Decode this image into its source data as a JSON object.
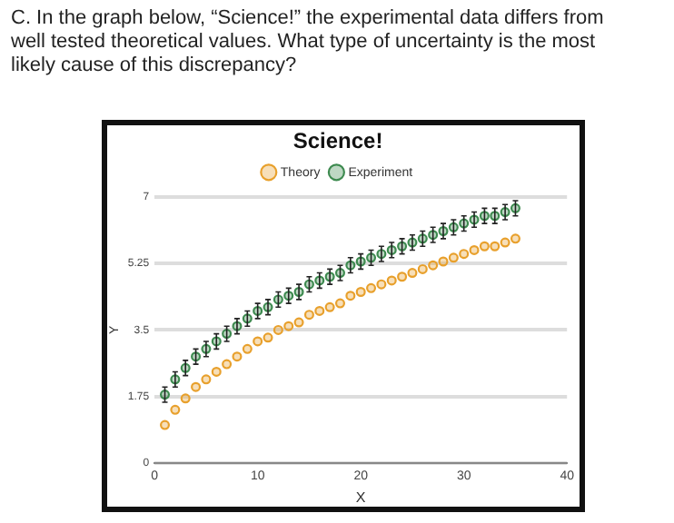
{
  "chart_data": {
    "type": "scatter",
    "title": "C. In the graph below, “Science!” the experimental data differs from well tested theoretical values.  What type of uncertainty is the most likely cause of this discrepancy?",
    "subtitle": "Science!",
    "xlabel": "X",
    "ylabel": "Y",
    "x": [
      1,
      2,
      3,
      4,
      5,
      6,
      7,
      8,
      9,
      10,
      11,
      12,
      13,
      14,
      15,
      16,
      17,
      18,
      19,
      20,
      21,
      22,
      23,
      24,
      25,
      26,
      27,
      28,
      29,
      30,
      31,
      32,
      33,
      34,
      35
    ],
    "series": [
      {
        "name": "Theory",
        "color": "#e8a02c",
        "values": [
          1.0,
          1.4,
          1.7,
          2.0,
          2.2,
          2.4,
          2.6,
          2.8,
          3.0,
          3.2,
          3.3,
          3.5,
          3.6,
          3.7,
          3.9,
          4.0,
          4.1,
          4.2,
          4.4,
          4.5,
          4.6,
          4.7,
          4.8,
          4.9,
          5.0,
          5.1,
          5.2,
          5.3,
          5.4,
          5.5,
          5.6,
          5.7,
          5.7,
          5.8,
          5.9
        ]
      },
      {
        "name": "Experiment",
        "color": "#3d8a4f",
        "values": [
          1.8,
          2.2,
          2.5,
          2.8,
          3.0,
          3.2,
          3.4,
          3.6,
          3.8,
          4.0,
          4.1,
          4.3,
          4.4,
          4.5,
          4.7,
          4.8,
          4.9,
          5.0,
          5.2,
          5.3,
          5.4,
          5.5,
          5.6,
          5.7,
          5.8,
          5.9,
          6.0,
          6.1,
          6.2,
          6.3,
          6.4,
          6.5,
          6.5,
          6.6,
          6.7
        ],
        "errors": [
          0.2,
          0.2,
          0.2,
          0.2,
          0.2,
          0.2,
          0.2,
          0.2,
          0.2,
          0.2,
          0.2,
          0.2,
          0.2,
          0.2,
          0.2,
          0.2,
          0.2,
          0.2,
          0.2,
          0.2,
          0.2,
          0.2,
          0.2,
          0.2,
          0.2,
          0.2,
          0.2,
          0.2,
          0.2,
          0.2,
          0.2,
          0.2,
          0.2,
          0.2,
          0.2
        ]
      }
    ],
    "xlim": [
      0,
      40
    ],
    "xticks": [
      0,
      10,
      20,
      30,
      40
    ],
    "ylim": [
      0,
      7
    ],
    "yticks": [
      0,
      1.75,
      3.5,
      5.25,
      7
    ],
    "grid": "y",
    "legend": "top",
    "marker": "circle"
  }
}
